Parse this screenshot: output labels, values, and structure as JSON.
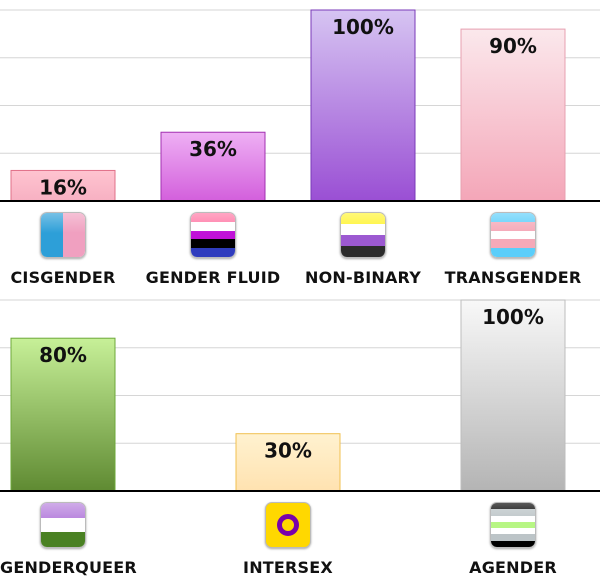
{
  "chart_data": [
    {
      "type": "bar",
      "categories": [
        "CISGENDER",
        "GENDER FLUID",
        "NON-BINARY",
        "TRANSGENDER"
      ],
      "values": [
        16,
        36,
        100,
        90
      ],
      "value_labels": [
        "16%",
        "36%",
        "100%",
        "90%"
      ],
      "ylim": [
        0,
        100
      ],
      "grid": true,
      "bar_colors": [
        [
          "#ffc4d0",
          "#f7b0c2"
        ],
        [
          "#eeb0f4",
          "#d35fdc"
        ],
        [
          "#d6c4f2",
          "#9a4fd4"
        ],
        [
          "#fbe8ec",
          "#f4a6b8"
        ]
      ],
      "bar_borders": [
        "#e07088",
        "#a230b0",
        "#7a3ab8",
        "#e7a0b0"
      ],
      "icons": [
        "cisgender-flag-icon",
        "gender-fluid-flag-icon",
        "non-binary-flag-icon",
        "transgender-flag-icon"
      ]
    },
    {
      "type": "bar",
      "categories": [
        "GENDERQUEER",
        "INTERSEX",
        "AGENDER"
      ],
      "values": [
        80,
        30,
        100
      ],
      "value_labels": [
        "80%",
        "30%",
        "100%"
      ],
      "ylim": [
        0,
        100
      ],
      "grid": true,
      "bar_colors": [
        [
          "#c7f098",
          "#5f8a32"
        ],
        [
          "#fff2d0",
          "#ffe2b0"
        ],
        [
          "#f8f8f8",
          "#b4b4b4"
        ]
      ],
      "bar_borders": [
        "#6ea83a",
        "#f0c050",
        "#bdbdbd"
      ],
      "icons": [
        "genderqueer-flag-icon",
        "intersex-flag-icon",
        "agender-flag-icon"
      ]
    }
  ],
  "flags": {
    "cisgender": [
      "#2d9fd8",
      "#f0a0c0"
    ],
    "gender_fluid": [
      "#ff76a4",
      "#ffffff",
      "#c011d7",
      "#000000",
      "#2f3cbe"
    ],
    "non_binary": [
      "#fff430",
      "#ffffff",
      "#9c59d1",
      "#2c2c2c"
    ],
    "transgender": [
      "#5bcefa",
      "#f5a9b8",
      "#ffffff",
      "#f5a9b8",
      "#5bcefa"
    ],
    "genderqueer": [
      "#b57edc",
      "#ffffff",
      "#4a8123"
    ],
    "agender": [
      "#000000",
      "#bcc4c7",
      "#ffffff",
      "#b7f684",
      "#ffffff",
      "#bcc4c7",
      "#000000"
    ]
  }
}
